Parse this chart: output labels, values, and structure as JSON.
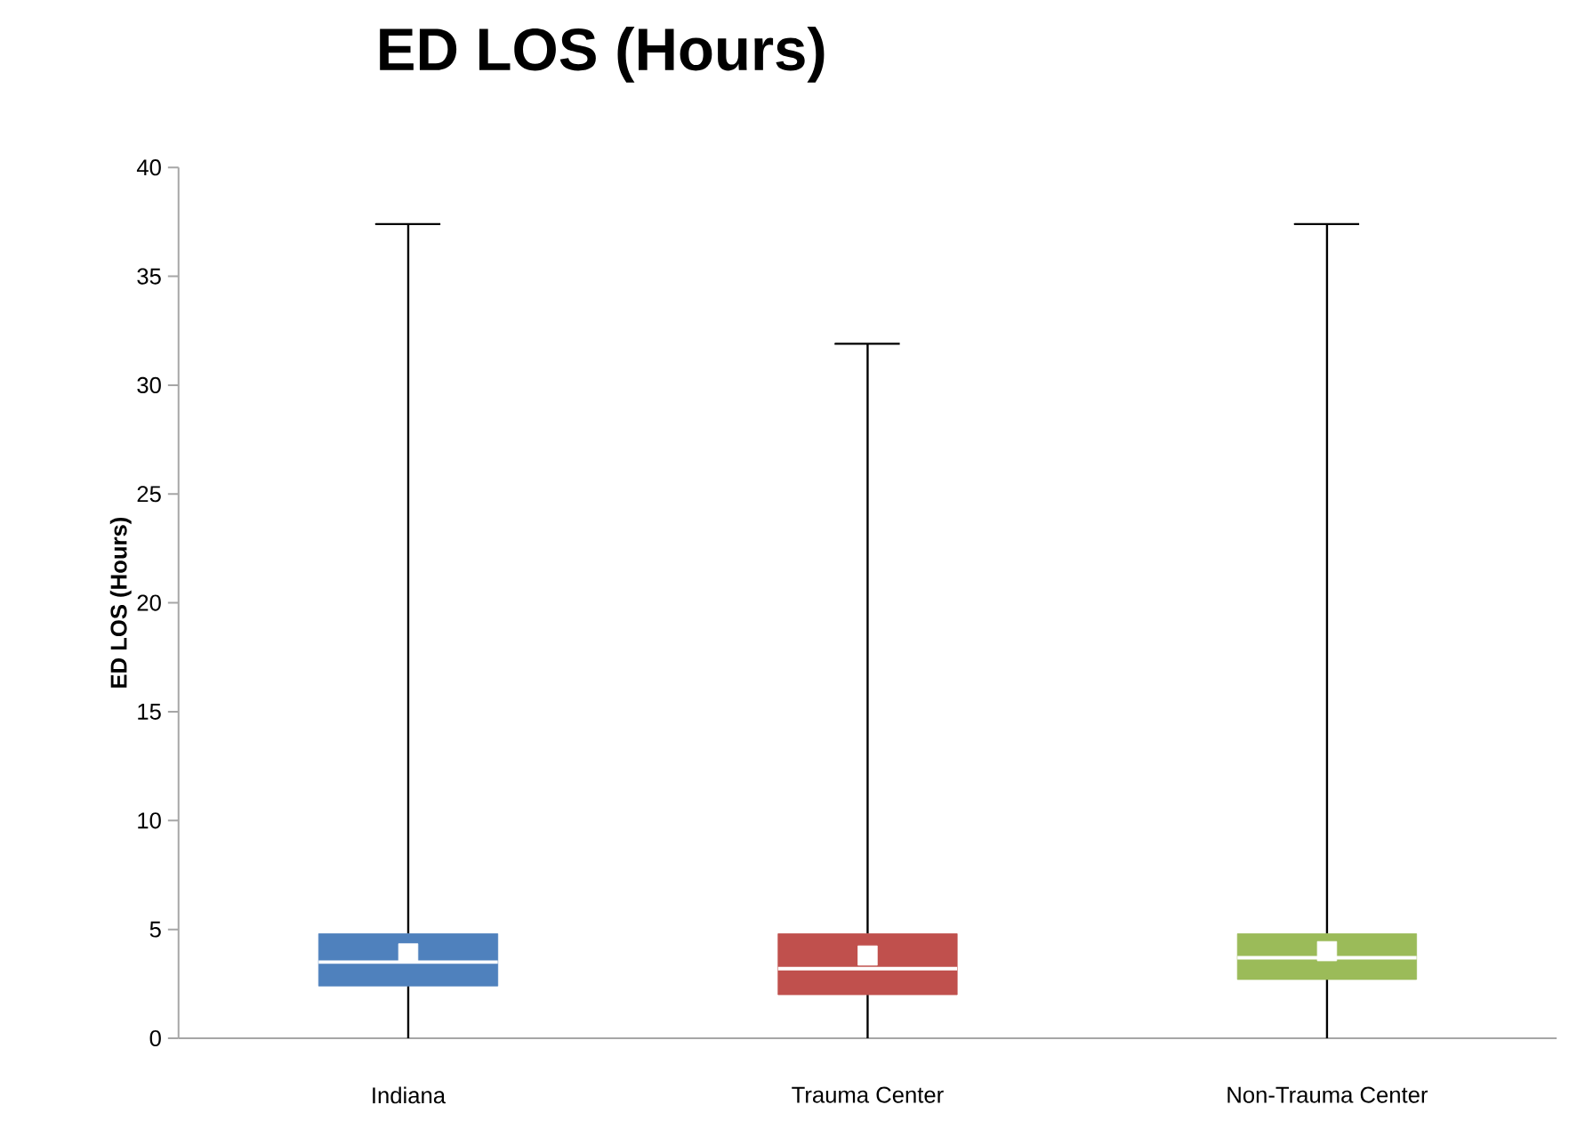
{
  "chart_data": {
    "type": "box",
    "title": "ED LOS (Hours)",
    "ylabel": "ED LOS (Hours)",
    "categories": [
      "Indiana",
      "Trauma Center",
      "Non-Trauma Center"
    ],
    "colors": [
      "#4f81bd",
      "#c0504d",
      "#9bbb59"
    ],
    "boxes": [
      {
        "low": 0,
        "q1": 2.4,
        "median": 3.5,
        "q3": 4.8,
        "high": 37.4,
        "mean": 3.9
      },
      {
        "low": 0,
        "q1": 2.0,
        "median": 3.2,
        "q3": 4.8,
        "high": 31.9,
        "mean": 3.8
      },
      {
        "low": 0,
        "q1": 2.7,
        "median": 3.7,
        "q3": 4.8,
        "high": 37.4,
        "mean": 4.0
      }
    ],
    "ylim": [
      0,
      40
    ],
    "yticks": [
      0,
      5,
      10,
      15,
      20,
      25,
      30,
      35,
      40
    ],
    "grid": false
  }
}
